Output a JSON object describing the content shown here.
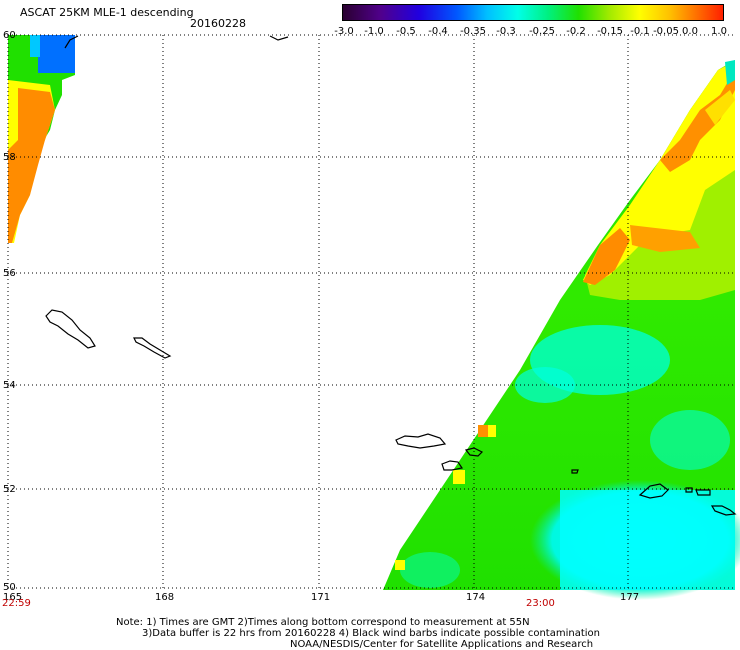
{
  "header": {
    "title": "ASCAT 25KM MLE-1 descending",
    "date": "20160228"
  },
  "colorbar": {
    "ticks": [
      "-3.0",
      "-1.0",
      "-0.5",
      "-0.4",
      "-0.35",
      "-0.3",
      "-0.25",
      "-0.2",
      "-0.15",
      "-0.1",
      "-0.05",
      "0.0",
      "1.0"
    ]
  },
  "map": {
    "lat_labels": [
      "60",
      "58",
      "56",
      "54",
      "52",
      "50"
    ],
    "lon_labels": [
      "165",
      "168",
      "171",
      "174",
      "177"
    ],
    "time_labels": [
      "22:59",
      "23:00"
    ],
    "colors": {
      "cyan": "#00ffff",
      "green": "#20e000",
      "yellow": "#ffff00",
      "orange": "#ff8c00",
      "blue": "#0070ff"
    }
  },
  "notes": {
    "line1": "Note: 1) Times are GMT 2)Times along bottom correspond to measurement at 55N",
    "line2": "3)Data buffer is 22 hrs from 20160228 4) Black wind barbs indicate possible contamination",
    "line3": "NOAA/NESDIS/Center for Satellite Applications and Research"
  }
}
